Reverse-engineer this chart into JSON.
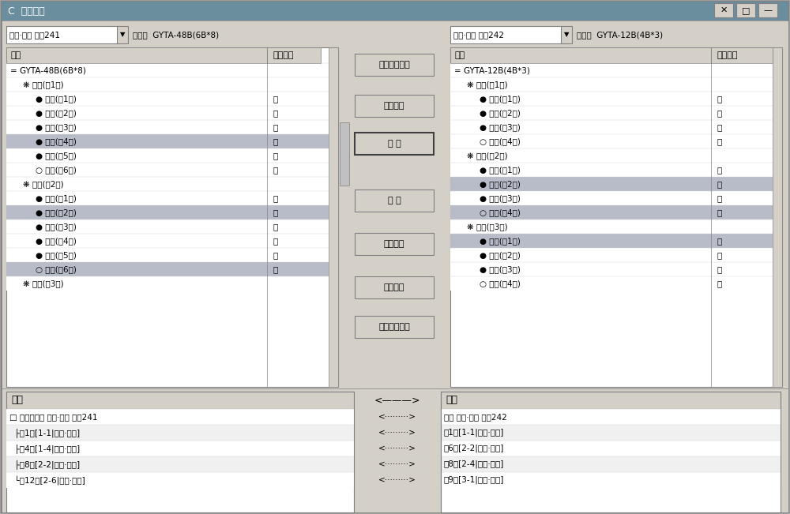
{
  "title_bar": "C  纤芯熔接",
  "title_bar_bg": "#6b8e9f",
  "window_bg": "#d4d0c8",
  "panel_bg": "#ffffff",
  "header_bg": "#d4d0c8",
  "selected_row_bg": "#c0c0c0",
  "highlighted_row_bg": "#b0b8c8",
  "left_dropdown": "南丰·宁都 分段241",
  "left_type": "型号：  GYTA-48B(6B*8)",
  "right_dropdown": "南丰·宁都 分段242",
  "right_type": "型号：  GYTA-12B(4B*3)",
  "left_col_headers": [
    "名称",
    "是否可用"
  ],
  "right_col_headers": [
    "名称",
    "是否可用"
  ],
  "left_tree": [
    {
      "level": 0,
      "text": "= GYTA-48B(6B*8)",
      "avail": "",
      "bg": "#ffffff"
    },
    {
      "level": 1,
      "text": "❋ 蓝色(第1束)",
      "avail": "",
      "bg": "#ffffff"
    },
    {
      "level": 2,
      "text": "● 蓝色(第1芯)",
      "avail": "否",
      "bg": "#ffffff"
    },
    {
      "level": 2,
      "text": "● 橙色(第2芯)",
      "avail": "是",
      "bg": "#ffffff"
    },
    {
      "level": 2,
      "text": "● 绿色(第3芯)",
      "avail": "是",
      "bg": "#ffffff"
    },
    {
      "level": 2,
      "text": "● 棕色(第4芯)",
      "avail": "否",
      "bg": "#b8bcc8"
    },
    {
      "level": 2,
      "text": "● 灰色(第5芯)",
      "avail": "是",
      "bg": "#ffffff"
    },
    {
      "level": 2,
      "text": "○ 白色(第6芯)",
      "avail": "是",
      "bg": "#ffffff"
    },
    {
      "level": 1,
      "text": "❋ 橙色(第2束)",
      "avail": "",
      "bg": "#ffffff"
    },
    {
      "level": 2,
      "text": "● 蓝色(第1芯)",
      "avail": "是",
      "bg": "#ffffff"
    },
    {
      "level": 2,
      "text": "● 橙色(第2芯)",
      "avail": "否",
      "bg": "#b8bcc8"
    },
    {
      "level": 2,
      "text": "● 绿色(第3芯)",
      "avail": "是",
      "bg": "#ffffff"
    },
    {
      "level": 2,
      "text": "● 棕色(第4芯)",
      "avail": "是",
      "bg": "#ffffff"
    },
    {
      "level": 2,
      "text": "● 灰色(第5芯)",
      "avail": "是",
      "bg": "#ffffff"
    },
    {
      "level": 2,
      "text": "○ 白色(第6芯)",
      "avail": "否",
      "bg": "#b8bcc8"
    },
    {
      "level": 1,
      "text": "❋ 绿色(第3束)",
      "avail": "",
      "bg": "#ffffff"
    }
  ],
  "right_tree": [
    {
      "level": 0,
      "text": "= GYTA-12B(4B*3)",
      "avail": "",
      "bg": "#ffffff"
    },
    {
      "level": 1,
      "text": "❋ 蓝色(第1束)",
      "avail": "",
      "bg": "#ffffff"
    },
    {
      "level": 2,
      "text": "● 红色(第1芯)",
      "avail": "否",
      "bg": "#ffffff"
    },
    {
      "level": 2,
      "text": "● 蓝色(第2芯)",
      "avail": "是",
      "bg": "#ffffff"
    },
    {
      "level": 2,
      "text": "● 橙色(第3芯)",
      "avail": "是",
      "bg": "#ffffff"
    },
    {
      "level": 2,
      "text": "○ 白色(第4芯)",
      "avail": "是",
      "bg": "#ffffff"
    },
    {
      "level": 1,
      "text": "❋ 白色(第2束)",
      "avail": "",
      "bg": "#ffffff"
    },
    {
      "level": 2,
      "text": "● 红色(第1芯)",
      "avail": "是",
      "bg": "#ffffff"
    },
    {
      "level": 2,
      "text": "● 蓝色(第2芯)",
      "avail": "否",
      "bg": "#b8bcc8"
    },
    {
      "level": 2,
      "text": "● 橙色(第3芯)",
      "avail": "是",
      "bg": "#ffffff"
    },
    {
      "level": 2,
      "text": "○ 白色(第4芯)",
      "avail": "否",
      "bg": "#b8bcc8"
    },
    {
      "level": 1,
      "text": "❋ 橙色(第3束)",
      "avail": "",
      "bg": "#ffffff"
    },
    {
      "level": 2,
      "text": "● 红色(第1芯)",
      "avail": "否",
      "bg": "#b8bcc8"
    },
    {
      "level": 2,
      "text": "● 蓝色(第2芯)",
      "avail": "是",
      "bg": "#ffffff"
    },
    {
      "level": 2,
      "text": "● 橙色(第3芯)",
      "avail": "是",
      "bg": "#ffffff"
    },
    {
      "level": 2,
      "text": "○ 白色(第4芯)",
      "avail": "是",
      "bg": "#ffffff"
    }
  ],
  "buttons": [
    "打开熔接模版",
    "快速熔接",
    "熔 接",
    "断 开",
    "全部断开",
    "结点折叠",
    "导入熔接数据"
  ],
  "bottom_col1": "端一",
  "bottom_col2": "<———>",
  "bottom_col3": "端二",
  "bottom_rows": [
    {
      "left": "□ 连接：光缆 南丰·宁都 分段241",
      "arrow": "<·········>",
      "right": "光缆 南丰·宁都 分段242"
    },
    {
      "left": "  ├第1芯[1-1|蓝色·蓝色]",
      "arrow": "<·········>",
      "right": "第1芯[1-1|蓝色·红色]"
    },
    {
      "left": "  ├第4芯[1-4|蓝色·棕色]",
      "arrow": "<·········>",
      "right": "第6芯[2-2|白色·蓝色]"
    },
    {
      "left": "  ├第8芯[2-2|橙色·橙色]",
      "arrow": "<·········>",
      "right": "第8芯[2-4|白色·白色]"
    },
    {
      "left": "  └第12芯[2-6|橙色·白色]",
      "arrow": "<·········>",
      "right": "第9芯[3-1|橙色·红色]"
    }
  ]
}
